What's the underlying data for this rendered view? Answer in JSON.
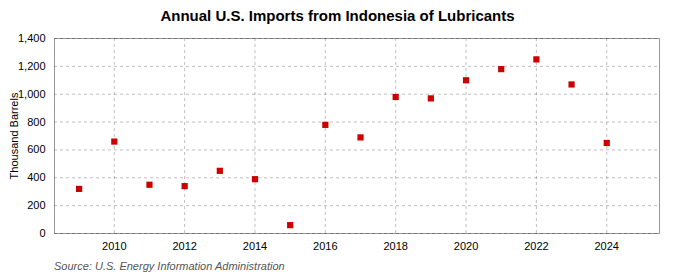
{
  "chart_data": {
    "type": "scatter",
    "title": "Annual U.S. Imports from Indonesia of Lubricants",
    "ylabel": "Thousand Barrels",
    "annotations": [
      "Source: U.S. Energy Information Administration"
    ],
    "x": [
      2009,
      2010,
      2011,
      2012,
      2013,
      2014,
      2015,
      2016,
      2017,
      2018,
      2019,
      2020,
      2021,
      2022,
      2023,
      2024
    ],
    "values": [
      320,
      660,
      350,
      340,
      450,
      390,
      60,
      780,
      690,
      980,
      970,
      1100,
      1180,
      1250,
      1070,
      650
    ],
    "color": "#cc0000",
    "marker": "square",
    "xlim": [
      2008.3,
      2025.5
    ],
    "xticks": [
      2010,
      2012,
      2014,
      2016,
      2018,
      2020,
      2022,
      2024
    ],
    "ylim": [
      0,
      1400
    ],
    "yticks": [
      0,
      200,
      400,
      600,
      800,
      {
        "value": 1000,
        "label": "1,000"
      },
      {
        "value": 1200,
        "label": "1,200"
      },
      {
        "value": 1400,
        "label": "1,400"
      }
    ],
    "grid": true
  }
}
